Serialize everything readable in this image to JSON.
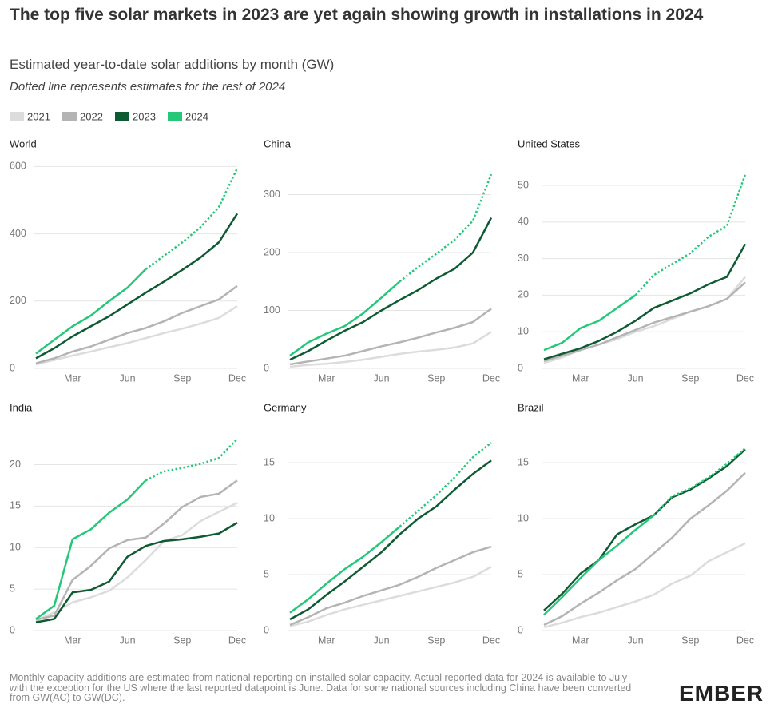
{
  "title": "The top five solar markets in 2023 are yet again showing growth in installations in 2024",
  "subtitle": "Estimated year-to-date solar additions by month (GW)",
  "note": "Dotted line represents estimates for the rest of 2024",
  "footnote": "Monthly capacity additions are estimated from national reporting on installed solar capacity. Actual reported data for 2024 is available to July with the exception for the US where the last reported datapoint is June. Data for some national sources including China have been converted from GW(AC) to GW(DC).",
  "logo": "EMBER",
  "chart_data": [
    {
      "type": "line",
      "title": "World",
      "categories": [
        null,
        null,
        "Mar",
        null,
        null,
        "Jun",
        null,
        null,
        "Sep",
        null,
        null,
        "Dec"
      ],
      "ylim": [
        0,
        620
      ],
      "yticks": [
        0,
        200,
        400,
        600
      ],
      "grid": true,
      "dotted_from": 6,
      "series": [
        {
          "name": "2021",
          "color": "#dcdcdc",
          "values": [
            12,
            25,
            38,
            50,
            63,
            75,
            90,
            105,
            118,
            133,
            150,
            185
          ]
        },
        {
          "name": "2022",
          "color": "#b4b4b4",
          "values": [
            15,
            30,
            50,
            65,
            85,
            105,
            120,
            140,
            165,
            185,
            205,
            245
          ]
        },
        {
          "name": "2023",
          "color": "#0e5a32",
          "values": [
            30,
            60,
            95,
            125,
            155,
            190,
            225,
            258,
            293,
            330,
            375,
            460
          ]
        },
        {
          "name": "2024",
          "color": "#24c878",
          "values": [
            44,
            85,
            125,
            157,
            200,
            240,
            295,
            335,
            375,
            420,
            480,
            595
          ]
        }
      ]
    },
    {
      "type": "line",
      "title": "China",
      "categories": [
        null,
        null,
        "Mar",
        null,
        null,
        "Jun",
        null,
        null,
        "Sep",
        null,
        null,
        "Dec"
      ],
      "ylim": [
        0,
        360
      ],
      "yticks": [
        0,
        100,
        200,
        300
      ],
      "grid": true,
      "dotted_from": 6,
      "series": [
        {
          "name": "2021",
          "color": "#dcdcdc",
          "values": [
            3,
            6,
            8,
            11,
            15,
            20,
            25,
            29,
            32,
            36,
            43,
            63
          ]
        },
        {
          "name": "2022",
          "color": "#b4b4b4",
          "values": [
            7,
            12,
            17,
            22,
            30,
            38,
            45,
            53,
            62,
            70,
            80,
            103
          ]
        },
        {
          "name": "2023",
          "color": "#0e5a32",
          "values": [
            15,
            30,
            48,
            65,
            80,
            100,
            118,
            135,
            155,
            172,
            200,
            260
          ]
        },
        {
          "name": "2024",
          "color": "#24c878",
          "values": [
            22,
            45,
            60,
            73,
            95,
            122,
            150,
            175,
            198,
            222,
            255,
            335
          ]
        }
      ]
    },
    {
      "type": "line",
      "title": "United States",
      "categories": [
        null,
        null,
        "Mar",
        null,
        null,
        "Jun",
        null,
        null,
        "Sep",
        null,
        null,
        "Dec"
      ],
      "ylim": [
        0,
        57
      ],
      "yticks": [
        0,
        10,
        20,
        30,
        40,
        50
      ],
      "grid": true,
      "dotted_from": 5,
      "series": [
        {
          "name": "2021",
          "color": "#dcdcdc",
          "values": [
            1.5,
            3,
            5,
            6.5,
            8,
            10,
            11.5,
            13.5,
            15.5,
            17,
            19,
            25
          ]
        },
        {
          "name": "2022",
          "color": "#b4b4b4",
          "values": [
            2,
            3.5,
            5,
            6.5,
            8.5,
            10.5,
            12.5,
            14,
            15.5,
            17,
            19,
            23.5
          ]
        },
        {
          "name": "2023",
          "color": "#0e5a32",
          "values": [
            2.5,
            4,
            5.5,
            7.5,
            10,
            13,
            16.5,
            18.5,
            20.5,
            23,
            25,
            34
          ]
        },
        {
          "name": "2024",
          "color": "#24c878",
          "values": [
            5,
            7,
            11,
            13,
            16.5,
            20,
            25.5,
            28.5,
            31.5,
            36,
            39,
            53
          ]
        }
      ]
    },
    {
      "type": "line",
      "title": "India",
      "categories": [
        null,
        null,
        "Mar",
        null,
        null,
        "Jun",
        null,
        null,
        "Sep",
        null,
        null,
        "Dec"
      ],
      "ylim": [
        0,
        24
      ],
      "yticks": [
        0,
        5,
        10,
        15,
        20
      ],
      "grid": true,
      "dotted_from": 6,
      "series": [
        {
          "name": "2021",
          "color": "#dcdcdc",
          "values": [
            1.2,
            2.2,
            3.4,
            4,
            4.8,
            6.4,
            8.5,
            10.8,
            11.5,
            13.2,
            14.3,
            15.4
          ]
        },
        {
          "name": "2022",
          "color": "#b4b4b4",
          "values": [
            1.3,
            1.8,
            6.1,
            7.8,
            9.9,
            10.9,
            11.2,
            12.9,
            14.9,
            16.1,
            16.5,
            18.1
          ]
        },
        {
          "name": "2023",
          "color": "#0e5a32",
          "values": [
            1,
            1.4,
            4.6,
            4.9,
            5.9,
            8.9,
            10.2,
            10.8,
            11,
            11.3,
            11.7,
            13
          ]
        },
        {
          "name": "2024",
          "color": "#24c878",
          "values": [
            1.4,
            3,
            11,
            12.2,
            14.2,
            15.8,
            18.1,
            19.2,
            19.6,
            20.1,
            20.8,
            23.1
          ]
        }
      ]
    },
    {
      "type": "line",
      "title": "Germany",
      "categories": [
        null,
        null,
        "Mar",
        null,
        null,
        "Jun",
        null,
        null,
        "Sep",
        null,
        null,
        "Dec"
      ],
      "ylim": [
        0,
        17.8
      ],
      "yticks": [
        0,
        5,
        10,
        15
      ],
      "grid": true,
      "dotted_from": 6,
      "series": [
        {
          "name": "2021",
          "color": "#dcdcdc",
          "values": [
            0.4,
            0.8,
            1.4,
            1.9,
            2.3,
            2.7,
            3.1,
            3.5,
            3.9,
            4.3,
            4.8,
            5.7
          ]
        },
        {
          "name": "2022",
          "color": "#b4b4b4",
          "values": [
            0.5,
            1.2,
            2,
            2.5,
            3.1,
            3.6,
            4.1,
            4.8,
            5.6,
            6.3,
            7,
            7.5
          ]
        },
        {
          "name": "2023",
          "color": "#0e5a32",
          "values": [
            1,
            1.9,
            3.2,
            4.4,
            5.7,
            7,
            8.6,
            10,
            11.1,
            12.6,
            14,
            15.2
          ]
        },
        {
          "name": "2024",
          "color": "#24c878",
          "values": [
            1.6,
            2.8,
            4.2,
            5.5,
            6.6,
            7.9,
            9.3,
            10.7,
            12.1,
            13.7,
            15.5,
            16.8
          ]
        }
      ]
    },
    {
      "type": "line",
      "title": "Brazil",
      "categories": [
        null,
        null,
        "Mar",
        null,
        null,
        "Jun",
        null,
        null,
        "Sep",
        null,
        null,
        "Dec"
      ],
      "ylim": [
        0,
        17.8
      ],
      "yticks": [
        0,
        5,
        10,
        15
      ],
      "grid": true,
      "dotted_from": 6,
      "series": [
        {
          "name": "2021",
          "color": "#dcdcdc",
          "values": [
            0.3,
            0.7,
            1.2,
            1.6,
            2.1,
            2.6,
            3.2,
            4.2,
            4.9,
            6.2,
            7,
            7.8
          ]
        },
        {
          "name": "2022",
          "color": "#b4b4b4",
          "values": [
            0.5,
            1.3,
            2.4,
            3.4,
            4.5,
            5.5,
            6.9,
            8.3,
            10,
            11.2,
            12.5,
            14.1
          ]
        },
        {
          "name": "2023",
          "color": "#0e5a32",
          "values": [
            1.8,
            3.3,
            5.1,
            6.3,
            8.6,
            9.5,
            10.3,
            11.9,
            12.6,
            13.6,
            14.7,
            16.2
          ]
        },
        {
          "name": "2024",
          "color": "#24c878",
          "values": [
            1.4,
            3,
            4.7,
            6.3,
            7.6,
            9,
            10.3,
            12,
            12.7,
            13.7,
            14.9,
            16.3
          ]
        }
      ]
    }
  ]
}
